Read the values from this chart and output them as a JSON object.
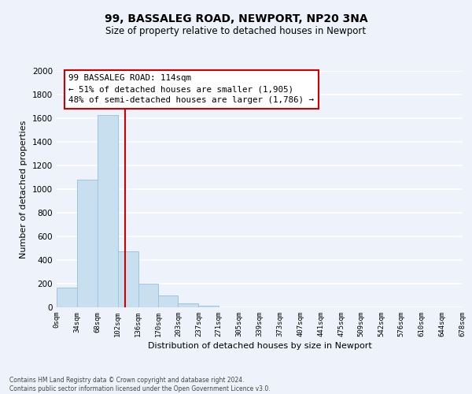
{
  "title": "99, BASSALEG ROAD, NEWPORT, NP20 3NA",
  "subtitle": "Size of property relative to detached houses in Newport",
  "xlabel": "Distribution of detached houses by size in Newport",
  "ylabel": "Number of detached properties",
  "bar_color": "#c8dff0",
  "bar_edge_color": "#a0c4e0",
  "bin_edges": [
    0,
    34,
    68,
    102,
    136,
    170,
    203,
    237,
    271,
    305,
    339,
    373,
    407,
    441,
    475,
    509,
    542,
    576,
    610,
    644,
    678
  ],
  "bar_heights": [
    170,
    1080,
    1630,
    475,
    200,
    100,
    35,
    15,
    0,
    0,
    0,
    0,
    0,
    0,
    0,
    0,
    0,
    0,
    0,
    0
  ],
  "tick_labels": [
    "0sqm",
    "34sqm",
    "68sqm",
    "102sqm",
    "136sqm",
    "170sqm",
    "203sqm",
    "237sqm",
    "271sqm",
    "305sqm",
    "339sqm",
    "373sqm",
    "407sqm",
    "441sqm",
    "475sqm",
    "509sqm",
    "542sqm",
    "576sqm",
    "610sqm",
    "644sqm",
    "678sqm"
  ],
  "ylim": [
    0,
    2000
  ],
  "yticks": [
    0,
    200,
    400,
    600,
    800,
    1000,
    1200,
    1400,
    1600,
    1800,
    2000
  ],
  "vline_x": 114,
  "vline_color": "#cc0000",
  "annotation_title": "99 BASSALEG ROAD: 114sqm",
  "annotation_line1": "← 51% of detached houses are smaller (1,905)",
  "annotation_line2": "48% of semi-detached houses are larger (1,786) →",
  "annotation_box_color": "white",
  "annotation_box_edge": "#cc0000",
  "footer_line1": "Contains HM Land Registry data © Crown copyright and database right 2024.",
  "footer_line2": "Contains public sector information licensed under the Open Government Licence v3.0.",
  "background_color": "#eef2fa"
}
